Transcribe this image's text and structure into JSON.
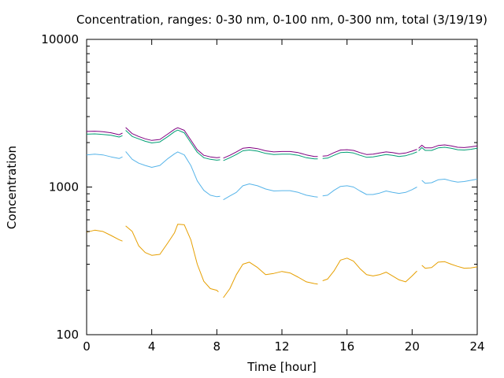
{
  "chart_data": {
    "type": "line",
    "title": "Concentration, ranges: 0-30 nm, 0-100 nm, 0-300 nm, total (3/19/19)",
    "xlabel": "Time [hour]",
    "ylabel": "Concentration",
    "xlim": [
      0,
      24
    ],
    "ylim": [
      100,
      10000
    ],
    "yscale": "log",
    "grid": false,
    "legend": "none",
    "x_ticks": [
      0,
      4,
      8,
      12,
      16,
      20,
      24
    ],
    "x_tick_labels": [
      "0",
      "4",
      "8",
      "12",
      "16",
      "20",
      "24"
    ],
    "y_ticks": [
      100,
      1000,
      10000
    ],
    "y_tick_labels": [
      "100",
      "1000",
      "10000"
    ],
    "series": [
      {
        "color": "#e69f00",
        "segments": [
          [
            [
              0.0,
              495
            ],
            [
              0.5,
              510
            ],
            [
              1.0,
              500
            ],
            [
              1.5,
              470
            ],
            [
              2.0,
              440
            ],
            [
              2.2,
              430
            ]
          ],
          [
            [
              2.4,
              545
            ],
            [
              2.8,
              500
            ],
            [
              3.2,
              400
            ],
            [
              3.6,
              360
            ],
            [
              4.0,
              345
            ],
            [
              4.5,
              350
            ],
            [
              5.0,
              420
            ],
            [
              5.4,
              490
            ],
            [
              5.6,
              560
            ],
            [
              6.0,
              555
            ],
            [
              6.4,
              440
            ],
            [
              6.8,
              300
            ],
            [
              7.2,
              230
            ],
            [
              7.6,
              205
            ],
            [
              8.0,
              200
            ],
            [
              8.1,
              195
            ]
          ],
          [
            [
              8.4,
              178
            ],
            [
              8.8,
              205
            ],
            [
              9.2,
              255
            ],
            [
              9.6,
              300
            ],
            [
              10.0,
              310
            ],
            [
              10.5,
              285
            ],
            [
              11.0,
              255
            ],
            [
              11.5,
              260
            ],
            [
              12.0,
              268
            ],
            [
              12.5,
              262
            ],
            [
              13.0,
              245
            ],
            [
              13.5,
              228
            ],
            [
              14.0,
              222
            ],
            [
              14.2,
              220
            ]
          ],
          [
            [
              14.5,
              232
            ],
            [
              14.8,
              238
            ],
            [
              15.2,
              270
            ],
            [
              15.6,
              320
            ],
            [
              16.0,
              330
            ],
            [
              16.4,
              315
            ],
            [
              16.8,
              280
            ],
            [
              17.2,
              255
            ],
            [
              17.6,
              250
            ],
            [
              18.0,
              255
            ],
            [
              18.4,
              265
            ],
            [
              18.8,
              250
            ],
            [
              19.2,
              235
            ],
            [
              19.6,
              228
            ],
            [
              20.0,
              250
            ],
            [
              20.3,
              270
            ]
          ],
          [
            [
              20.6,
              295
            ],
            [
              20.8,
              282
            ],
            [
              21.2,
              285
            ],
            [
              21.6,
              310
            ],
            [
              22.0,
              312
            ],
            [
              22.4,
              300
            ],
            [
              22.8,
              290
            ],
            [
              23.2,
              282
            ],
            [
              23.6,
              283
            ],
            [
              24.0,
              288
            ]
          ]
        ]
      },
      {
        "color": "#56b4e9",
        "segments": [
          [
            [
              0.0,
              1650
            ],
            [
              0.5,
              1670
            ],
            [
              1.0,
              1650
            ],
            [
              1.5,
              1600
            ],
            [
              2.0,
              1560
            ],
            [
              2.2,
              1600
            ]
          ],
          [
            [
              2.4,
              1740
            ],
            [
              2.8,
              1540
            ],
            [
              3.2,
              1450
            ],
            [
              3.6,
              1400
            ],
            [
              4.0,
              1360
            ],
            [
              4.5,
              1400
            ],
            [
              5.0,
              1560
            ],
            [
              5.4,
              1680
            ],
            [
              5.6,
              1730
            ],
            [
              6.0,
              1650
            ],
            [
              6.4,
              1400
            ],
            [
              6.8,
              1100
            ],
            [
              7.2,
              950
            ],
            [
              7.6,
              880
            ],
            [
              8.0,
              860
            ],
            [
              8.2,
              865
            ]
          ],
          [
            [
              8.4,
              820
            ],
            [
              8.8,
              870
            ],
            [
              9.2,
              920
            ],
            [
              9.6,
              1020
            ],
            [
              10.0,
              1050
            ],
            [
              10.5,
              1020
            ],
            [
              11.0,
              970
            ],
            [
              11.5,
              940
            ],
            [
              12.0,
              945
            ],
            [
              12.5,
              945
            ],
            [
              13.0,
              920
            ],
            [
              13.5,
              880
            ],
            [
              14.0,
              860
            ],
            [
              14.2,
              855
            ]
          ],
          [
            [
              14.5,
              870
            ],
            [
              14.8,
              880
            ],
            [
              15.2,
              950
            ],
            [
              15.6,
              1010
            ],
            [
              16.0,
              1020
            ],
            [
              16.4,
              1000
            ],
            [
              16.8,
              940
            ],
            [
              17.2,
              890
            ],
            [
              17.6,
              890
            ],
            [
              18.0,
              910
            ],
            [
              18.4,
              940
            ],
            [
              18.8,
              920
            ],
            [
              19.2,
              905
            ],
            [
              19.6,
              920
            ],
            [
              20.0,
              960
            ],
            [
              20.3,
              1000
            ]
          ],
          [
            [
              20.6,
              1110
            ],
            [
              20.8,
              1060
            ],
            [
              21.2,
              1070
            ],
            [
              21.6,
              1120
            ],
            [
              22.0,
              1130
            ],
            [
              22.4,
              1100
            ],
            [
              22.8,
              1080
            ],
            [
              23.2,
              1090
            ],
            [
              23.6,
              1110
            ],
            [
              24.0,
              1130
            ]
          ]
        ]
      },
      {
        "color": "#009e73",
        "segments": [
          [
            [
              0.0,
              2280
            ],
            [
              0.5,
              2290
            ],
            [
              1.0,
              2270
            ],
            [
              1.5,
              2240
            ],
            [
              2.0,
              2180
            ],
            [
              2.2,
              2230
            ]
          ],
          [
            [
              2.4,
              2420
            ],
            [
              2.8,
              2200
            ],
            [
              3.2,
              2120
            ],
            [
              3.6,
              2040
            ],
            [
              4.0,
              1990
            ],
            [
              4.5,
              2020
            ],
            [
              5.0,
              2200
            ],
            [
              5.4,
              2370
            ],
            [
              5.6,
              2430
            ],
            [
              6.0,
              2330
            ],
            [
              6.4,
              2000
            ],
            [
              6.8,
              1720
            ],
            [
              7.2,
              1580
            ],
            [
              7.6,
              1540
            ],
            [
              8.0,
              1520
            ],
            [
              8.2,
              1530
            ]
          ],
          [
            [
              8.4,
              1510
            ],
            [
              8.8,
              1580
            ],
            [
              9.2,
              1660
            ],
            [
              9.6,
              1760
            ],
            [
              10.0,
              1780
            ],
            [
              10.5,
              1750
            ],
            [
              11.0,
              1690
            ],
            [
              11.5,
              1660
            ],
            [
              12.0,
              1670
            ],
            [
              12.5,
              1670
            ],
            [
              13.0,
              1640
            ],
            [
              13.5,
              1580
            ],
            [
              14.0,
              1550
            ],
            [
              14.2,
              1550
            ]
          ],
          [
            [
              14.5,
              1560
            ],
            [
              14.8,
              1570
            ],
            [
              15.2,
              1640
            ],
            [
              15.6,
              1710
            ],
            [
              16.0,
              1720
            ],
            [
              16.4,
              1700
            ],
            [
              16.8,
              1640
            ],
            [
              17.2,
              1590
            ],
            [
              17.6,
              1600
            ],
            [
              18.0,
              1630
            ],
            [
              18.4,
              1660
            ],
            [
              18.8,
              1640
            ],
            [
              19.2,
              1610
            ],
            [
              19.6,
              1630
            ],
            [
              20.0,
              1680
            ],
            [
              20.3,
              1730
            ]
          ],
          [
            [
              20.4,
              1760
            ],
            [
              20.6,
              1850
            ],
            [
              20.8,
              1770
            ],
            [
              21.2,
              1770
            ],
            [
              21.6,
              1840
            ],
            [
              22.0,
              1860
            ],
            [
              22.4,
              1830
            ],
            [
              22.8,
              1790
            ],
            [
              23.2,
              1780
            ],
            [
              23.6,
              1800
            ],
            [
              24.0,
              1830
            ]
          ]
        ]
      },
      {
        "color": "#800080",
        "segments": [
          [
            [
              0.0,
              2380
            ],
            [
              0.5,
              2390
            ],
            [
              1.0,
              2370
            ],
            [
              1.5,
              2330
            ],
            [
              2.0,
              2260
            ],
            [
              2.2,
              2320
            ]
          ],
          [
            [
              2.4,
              2530
            ],
            [
              2.8,
              2300
            ],
            [
              3.2,
              2200
            ],
            [
              3.6,
              2120
            ],
            [
              4.0,
              2070
            ],
            [
              4.5,
              2100
            ],
            [
              5.0,
              2290
            ],
            [
              5.4,
              2460
            ],
            [
              5.6,
              2520
            ],
            [
              6.0,
              2420
            ],
            [
              6.4,
              2080
            ],
            [
              6.8,
              1790
            ],
            [
              7.2,
              1640
            ],
            [
              7.6,
              1600
            ],
            [
              8.0,
              1580
            ],
            [
              8.2,
              1590
            ]
          ],
          [
            [
              8.4,
              1570
            ],
            [
              8.8,
              1640
            ],
            [
              9.2,
              1730
            ],
            [
              9.6,
              1830
            ],
            [
              10.0,
              1850
            ],
            [
              10.5,
              1820
            ],
            [
              11.0,
              1760
            ],
            [
              11.5,
              1730
            ],
            [
              12.0,
              1740
            ],
            [
              12.5,
              1740
            ],
            [
              13.0,
              1710
            ],
            [
              13.5,
              1650
            ],
            [
              14.0,
              1610
            ],
            [
              14.2,
              1610
            ]
          ],
          [
            [
              14.5,
              1620
            ],
            [
              14.8,
              1630
            ],
            [
              15.2,
              1710
            ],
            [
              15.6,
              1780
            ],
            [
              16.0,
              1790
            ],
            [
              16.4,
              1770
            ],
            [
              16.8,
              1710
            ],
            [
              17.2,
              1660
            ],
            [
              17.6,
              1670
            ],
            [
              18.0,
              1700
            ],
            [
              18.4,
              1730
            ],
            [
              18.8,
              1710
            ],
            [
              19.2,
              1680
            ],
            [
              19.6,
              1700
            ],
            [
              20.0,
              1750
            ],
            [
              20.3,
              1800
            ]
          ],
          [
            [
              20.4,
              1830
            ],
            [
              20.6,
              1920
            ],
            [
              20.8,
              1840
            ],
            [
              21.2,
              1840
            ],
            [
              21.6,
              1910
            ],
            [
              22.0,
              1930
            ],
            [
              22.4,
              1900
            ],
            [
              22.8,
              1860
            ],
            [
              23.2,
              1850
            ],
            [
              23.6,
              1870
            ],
            [
              24.0,
              1900
            ]
          ]
        ]
      }
    ]
  }
}
